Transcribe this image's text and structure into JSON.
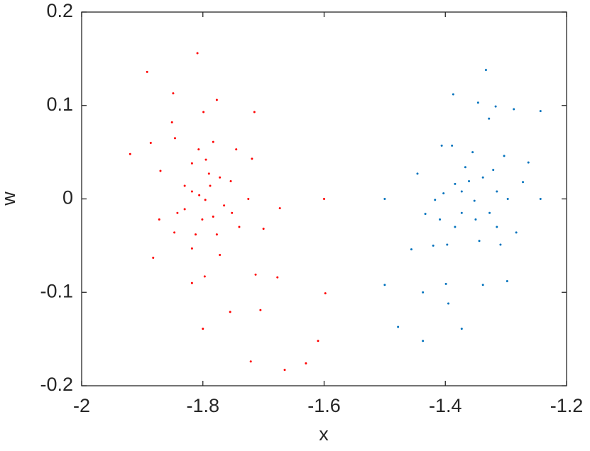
{
  "chart_data": {
    "type": "scatter",
    "xlabel": "x",
    "ylabel": "w",
    "xlim": [
      -2,
      -1.2
    ],
    "ylim": [
      -0.2,
      0.2
    ],
    "xticks": [
      -2,
      -1.8,
      -1.6,
      -1.4,
      -1.2
    ],
    "yticks": [
      -0.2,
      -0.1,
      0,
      0.1,
      0.2
    ],
    "series": [
      {
        "color": "#ff0000",
        "x": [
          -1.809,
          -1.892,
          -1.849,
          -1.777,
          -1.92,
          -1.886,
          -1.851,
          -1.799,
          -1.715,
          -1.745,
          -1.719,
          -1.87,
          -1.846,
          -1.6,
          -1.673,
          -1.7,
          -1.872,
          -1.847,
          -1.882,
          -1.818,
          -1.797,
          -1.8,
          -1.755,
          -1.713,
          -1.677,
          -1.705,
          -1.721,
          -1.665,
          -1.63,
          -1.61,
          -1.598,
          -1.83,
          -1.818,
          -1.806,
          -1.788,
          -1.79,
          -1.795,
          -1.783,
          -1.772,
          -1.754,
          -1.765,
          -1.752,
          -1.74,
          -1.783,
          -1.777,
          -1.772,
          -1.801,
          -1.812,
          -1.818,
          -1.83,
          -1.842,
          -1.807,
          -1.818,
          -1.725,
          -1.796
        ],
        "y": [
          0.156,
          0.136,
          0.113,
          0.106,
          0.048,
          0.06,
          0.082,
          0.093,
          0.093,
          0.053,
          0.043,
          0.03,
          0.065,
          0,
          -0.01,
          -0.032,
          -0.022,
          -0.036,
          -0.063,
          -0.09,
          -0.083,
          -0.139,
          -0.121,
          -0.081,
          -0.084,
          -0.119,
          -0.174,
          -0.183,
          -0.176,
          -0.152,
          -0.101,
          0.014,
          0.008,
          0.004,
          0.014,
          0.027,
          0.042,
          0.061,
          0.023,
          0.019,
          -0.007,
          -0.015,
          -0.03,
          -0.019,
          -0.038,
          -0.06,
          -0.022,
          -0.038,
          -0.053,
          -0.011,
          -0.015,
          0.053,
          0.038,
          0,
          -0.001
        ]
      },
      {
        "color": "#0072bd",
        "x": [
          -1.333,
          -1.387,
          -1.346,
          -1.317,
          -1.287,
          -1.243,
          -1.5,
          -1.446,
          -1.433,
          -1.456,
          -1.5,
          -1.478,
          -1.437,
          -1.437,
          -1.395,
          -1.373,
          -1.298,
          -1.283,
          -1.243,
          -1.263,
          -1.272,
          -1.328,
          -1.406,
          -1.389,
          -1.417,
          -1.42,
          -1.399,
          -1.338,
          -1.373,
          -1.384,
          -1.403,
          -1.361,
          -1.367,
          -1.355,
          -1.338,
          -1.321,
          -1.303,
          -1.315,
          -1.297,
          -1.327,
          -1.315,
          -1.309,
          -1.35,
          -1.344,
          -1.373,
          -1.384,
          -1.397,
          -1.409,
          -1.352
        ],
        "y": [
          0.138,
          0.112,
          0.103,
          0.099,
          0.096,
          0.094,
          0,
          0.027,
          -0.016,
          -0.054,
          -0.092,
          -0.137,
          -0.152,
          -0.1,
          -0.112,
          -0.139,
          -0.088,
          -0.036,
          0,
          0.039,
          0.018,
          0.086,
          0.057,
          0.057,
          -0.001,
          -0.05,
          -0.091,
          -0.092,
          0.008,
          0.016,
          0.006,
          0.019,
          0.034,
          0.05,
          0.023,
          0.031,
          0.046,
          0.008,
          0,
          -0.015,
          -0.03,
          -0.049,
          -0.022,
          -0.045,
          -0.015,
          -0.03,
          -0.049,
          -0.022,
          -0.002
        ]
      }
    ]
  }
}
